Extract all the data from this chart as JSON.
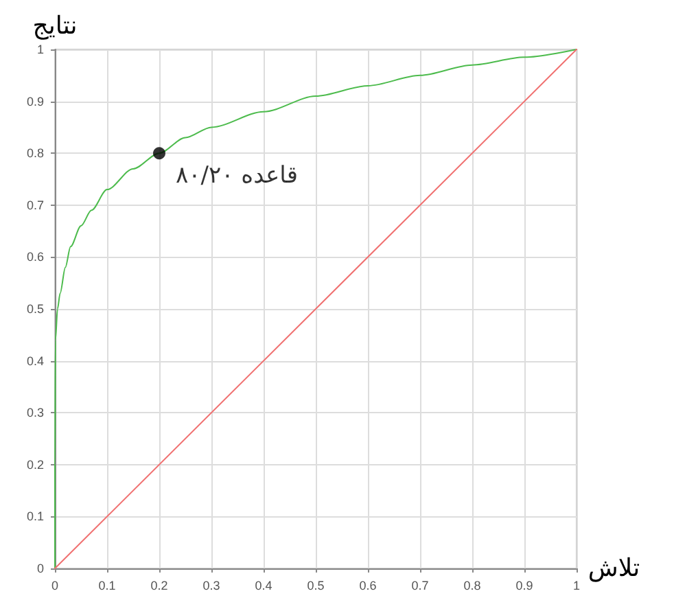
{
  "chart_data": {
    "type": "line",
    "xlabel": "تلاش",
    "ylabel": "نتایج",
    "xlim": [
      0,
      1
    ],
    "ylim": [
      0,
      1
    ],
    "xticks": [
      0,
      0.1,
      0.2,
      0.3,
      0.4,
      0.5,
      0.6,
      0.7,
      0.8,
      0.9,
      1
    ],
    "yticks": [
      0,
      0.1,
      0.2,
      0.3,
      0.4,
      0.5,
      0.6,
      0.7,
      0.8,
      0.9,
      1
    ],
    "grid": true,
    "marker": "none",
    "series": [
      {
        "color": "#4cbb4c",
        "x": [
          0,
          0,
          0.001,
          0.005,
          0.01,
          0.02,
          0.03,
          0.05,
          0.07,
          0.1,
          0.15,
          0.2,
          0.25,
          0.3,
          0.4,
          0.5,
          0.6,
          0.7,
          0.8,
          0.9,
          1
        ],
        "values": [
          0,
          0.2,
          0.44,
          0.5,
          0.53,
          0.58,
          0.62,
          0.66,
          0.69,
          0.73,
          0.77,
          0.8,
          0.83,
          0.85,
          0.88,
          0.91,
          0.93,
          0.95,
          0.97,
          0.985,
          1
        ]
      },
      {
        "color": "#f07070",
        "x": [
          0,
          1
        ],
        "values": [
          0,
          1
        ]
      },
      {
        "type": "scatter",
        "color": "#000000",
        "marker": "circle",
        "x": [
          0.2
        ],
        "values": [
          0.8
        ]
      }
    ],
    "annotations": [
      {
        "text": "قاعده ۸۰/۲۰",
        "x": 0.2,
        "y": 0.8
      }
    ]
  }
}
